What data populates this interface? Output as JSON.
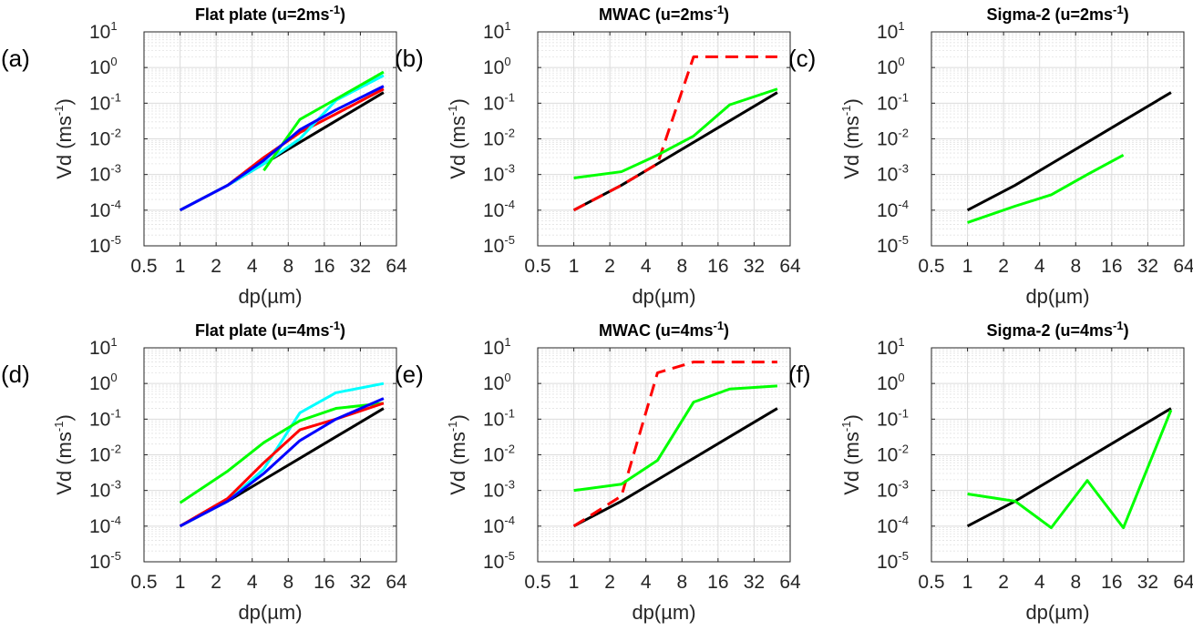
{
  "chart_data": [
    {
      "type": "line",
      "panel_label": "(a)",
      "title": "Flat plate (u=2ms",
      "title_sup": "-1",
      "title_tail": ")",
      "xlabel": "dp(µm)",
      "ylabel": "Vd (ms",
      "ylabel_sup": "-1",
      "ylabel_tail": ")",
      "xscale": "log2",
      "yscale": "log10",
      "xlim": [
        0.5,
        64
      ],
      "ylim": [
        -5,
        1
      ],
      "xticks": [
        0.5,
        1,
        2,
        4,
        8,
        16,
        32,
        64
      ],
      "xticklabels": [
        "0.5",
        "1",
        "2",
        "4",
        "8",
        "16",
        "32",
        "64"
      ],
      "yticks": [
        -5,
        -4,
        -3,
        -2,
        -1,
        0,
        1
      ],
      "ytick_mantissa": "10",
      "yticklabels_exp": [
        "-5",
        "-4",
        "-3",
        "-2",
        "-1",
        "0",
        "1"
      ],
      "grid": true,
      "series": [
        {
          "name": "black",
          "color": "#000000",
          "dash": "",
          "x": [
            1,
            2.5,
            5,
            10,
            20,
            50
          ],
          "y": [
            0.0001,
            0.0005,
            0.002,
            0.008,
            0.032,
            0.2
          ]
        },
        {
          "name": "red",
          "color": "#ff0000",
          "dash": "",
          "x": [
            1,
            2.5,
            5,
            10,
            20,
            50
          ],
          "y": [
            0.0001,
            0.0005,
            0.003,
            0.015,
            0.05,
            0.25
          ]
        },
        {
          "name": "cyan",
          "color": "#00ffff",
          "dash": "",
          "x": [
            1,
            2.5,
            5,
            10,
            20,
            50
          ],
          "y": [
            0.0001,
            0.0005,
            0.002,
            0.01,
            0.12,
            0.6
          ]
        },
        {
          "name": "green",
          "color": "#00ff00",
          "dash": "",
          "x": [
            5,
            10,
            20,
            50
          ],
          "y": [
            0.0013,
            0.035,
            0.13,
            0.75
          ]
        },
        {
          "name": "blue",
          "color": "#0000ff",
          "dash": "",
          "x": [
            1,
            2.5,
            5,
            10,
            20,
            50
          ],
          "y": [
            0.0001,
            0.0005,
            0.0025,
            0.018,
            0.065,
            0.3
          ]
        }
      ]
    },
    {
      "type": "line",
      "panel_label": "(b)",
      "title": "MWAC (u=2ms",
      "title_sup": "-1",
      "title_tail": ")",
      "xlabel": "dp(µm)",
      "ylabel": "Vd (ms",
      "ylabel_sup": "-1",
      "ylabel_tail": ")",
      "xscale": "log2",
      "yscale": "log10",
      "xlim": [
        0.5,
        64
      ],
      "ylim": [
        -5,
        1
      ],
      "xticks": [
        0.5,
        1,
        2,
        4,
        8,
        16,
        32,
        64
      ],
      "xticklabels": [
        "0.5",
        "1",
        "2",
        "4",
        "8",
        "16",
        "32",
        "64"
      ],
      "yticks": [
        -5,
        -4,
        -3,
        -2,
        -1,
        0,
        1
      ],
      "ytick_mantissa": "10",
      "yticklabels_exp": [
        "-5",
        "-4",
        "-3",
        "-2",
        "-1",
        "0",
        "1"
      ],
      "grid": true,
      "series": [
        {
          "name": "black",
          "color": "#000000",
          "dash": "",
          "x": [
            1,
            2.5,
            5,
            10,
            20,
            50
          ],
          "y": [
            0.0001,
            0.0005,
            0.002,
            0.008,
            0.032,
            0.2
          ]
        },
        {
          "name": "red dashed",
          "color": "#ff0000",
          "dash": "14,8",
          "x": [
            1,
            2.5,
            5,
            10,
            20,
            50
          ],
          "y": [
            0.0001,
            0.0005,
            0.002,
            2,
            2,
            2
          ]
        },
        {
          "name": "green",
          "color": "#00ff00",
          "dash": "",
          "x": [
            1,
            2.5,
            5,
            10,
            20,
            50
          ],
          "y": [
            0.0008,
            0.0012,
            0.0035,
            0.012,
            0.09,
            0.25
          ]
        }
      ]
    },
    {
      "type": "line",
      "panel_label": "(c)",
      "title": "Sigma-2 (u=2ms",
      "title_sup": "-1",
      "title_tail": ")",
      "xlabel": "dp(µm)",
      "ylabel": "Vd (ms",
      "ylabel_sup": "-1",
      "ylabel_tail": ")",
      "xscale": "log2",
      "yscale": "log10",
      "xlim": [
        0.5,
        64
      ],
      "ylim": [
        -5,
        1
      ],
      "xticks": [
        0.5,
        1,
        2,
        4,
        8,
        16,
        32,
        64
      ],
      "xticklabels": [
        "0.5",
        "1",
        "2",
        "4",
        "8",
        "16",
        "32",
        "64"
      ],
      "yticks": [
        -5,
        -4,
        -3,
        -2,
        -1,
        0,
        1
      ],
      "ytick_mantissa": "10",
      "yticklabels_exp": [
        "-5",
        "-4",
        "-3",
        "-2",
        "-1",
        "0",
        "1"
      ],
      "grid": true,
      "series": [
        {
          "name": "black",
          "color": "#000000",
          "dash": "",
          "x": [
            1,
            2.5,
            5,
            10,
            20,
            50
          ],
          "y": [
            0.0001,
            0.0005,
            0.002,
            0.008,
            0.032,
            0.2
          ]
        },
        {
          "name": "green",
          "color": "#00ff00",
          "dash": "",
          "x": [
            1,
            2.5,
            5,
            10,
            20
          ],
          "y": [
            4.5e-05,
            0.00013,
            0.00027,
            0.001,
            0.0035
          ]
        }
      ]
    },
    {
      "type": "line",
      "panel_label": "(d)",
      "title": "Flat plate (u=4ms",
      "title_sup": "-1",
      "title_tail": ")",
      "xlabel": "dp(µm)",
      "ylabel": "Vd (ms",
      "ylabel_sup": "-1",
      "ylabel_tail": ")",
      "xscale": "log2",
      "yscale": "log10",
      "xlim": [
        0.5,
        64
      ],
      "ylim": [
        -5,
        1
      ],
      "xticks": [
        0.5,
        1,
        2,
        4,
        8,
        16,
        32,
        64
      ],
      "xticklabels": [
        "0.5",
        "1",
        "2",
        "4",
        "8",
        "16",
        "32",
        "64"
      ],
      "yticks": [
        -5,
        -4,
        -3,
        -2,
        -1,
        0,
        1
      ],
      "ytick_mantissa": "10",
      "yticklabels_exp": [
        "-5",
        "-4",
        "-3",
        "-2",
        "-1",
        "0",
        "1"
      ],
      "grid": true,
      "series": [
        {
          "name": "black",
          "color": "#000000",
          "dash": "",
          "x": [
            1,
            2.5,
            5,
            10,
            20,
            50
          ],
          "y": [
            0.0001,
            0.0005,
            0.002,
            0.008,
            0.032,
            0.2
          ]
        },
        {
          "name": "cyan",
          "color": "#00ffff",
          "dash": "",
          "x": [
            1,
            2.5,
            5,
            10,
            20,
            50
          ],
          "y": [
            0.0001,
            0.0005,
            0.004,
            0.15,
            0.55,
            1.0
          ]
        },
        {
          "name": "green",
          "color": "#00ff00",
          "dash": "",
          "x": [
            1,
            2.5,
            5,
            10,
            20,
            50
          ],
          "y": [
            0.00045,
            0.0035,
            0.022,
            0.09,
            0.2,
            0.28
          ]
        },
        {
          "name": "red",
          "color": "#ff0000",
          "dash": "",
          "x": [
            1,
            2.5,
            5,
            10,
            20,
            50
          ],
          "y": [
            0.0001,
            0.0006,
            0.006,
            0.05,
            0.1,
            0.28
          ]
        },
        {
          "name": "blue",
          "color": "#0000ff",
          "dash": "",
          "x": [
            1,
            2.5,
            5,
            10,
            20,
            50
          ],
          "y": [
            0.0001,
            0.0005,
            0.003,
            0.025,
            0.1,
            0.38
          ]
        }
      ]
    },
    {
      "type": "line",
      "panel_label": "(e)",
      "title": "MWAC (u=4ms",
      "title_sup": "-1",
      "title_tail": ")",
      "xlabel": "dp(µm)",
      "ylabel": "Vd (ms",
      "ylabel_sup": "-1",
      "ylabel_tail": ")",
      "xscale": "log2",
      "yscale": "log10",
      "xlim": [
        0.5,
        64
      ],
      "ylim": [
        -5,
        1
      ],
      "xticks": [
        0.5,
        1,
        2,
        4,
        8,
        16,
        32,
        64
      ],
      "xticklabels": [
        "0.5",
        "1",
        "2",
        "4",
        "8",
        "16",
        "32",
        "64"
      ],
      "yticks": [
        -5,
        -4,
        -3,
        -2,
        -1,
        0,
        1
      ],
      "ytick_mantissa": "10",
      "yticklabels_exp": [
        "-5",
        "-4",
        "-3",
        "-2",
        "-1",
        "0",
        "1"
      ],
      "grid": true,
      "series": [
        {
          "name": "black",
          "color": "#000000",
          "dash": "",
          "x": [
            1,
            2.5,
            5,
            10,
            20,
            50
          ],
          "y": [
            0.0001,
            0.0005,
            0.002,
            0.008,
            0.032,
            0.2
          ]
        },
        {
          "name": "red dashed",
          "color": "#ff0000",
          "dash": "14,8",
          "x": [
            1,
            2.5,
            5,
            10,
            20,
            50
          ],
          "y": [
            0.0001,
            0.0007,
            2,
            4,
            4,
            4
          ]
        },
        {
          "name": "green",
          "color": "#00ff00",
          "dash": "",
          "x": [
            1,
            2.5,
            5,
            10,
            20,
            50
          ],
          "y": [
            0.001,
            0.0015,
            0.007,
            0.3,
            0.7,
            0.85
          ]
        }
      ]
    },
    {
      "type": "line",
      "panel_label": "(f)",
      "title": "Sigma-2 (u=4ms",
      "title_sup": "-1",
      "title_tail": ")",
      "xlabel": "dp(µm)",
      "ylabel": "Vd (ms",
      "ylabel_sup": "-1",
      "ylabel_tail": ")",
      "xscale": "log2",
      "yscale": "log10",
      "xlim": [
        0.5,
        64
      ],
      "ylim": [
        -5,
        1
      ],
      "xticks": [
        0.5,
        1,
        2,
        4,
        8,
        16,
        32,
        64
      ],
      "xticklabels": [
        "0.5",
        "1",
        "2",
        "4",
        "8",
        "16",
        "32",
        "64"
      ],
      "yticks": [
        -5,
        -4,
        -3,
        -2,
        -1,
        0,
        1
      ],
      "ytick_mantissa": "10",
      "yticklabels_exp": [
        "-5",
        "-4",
        "-3",
        "-2",
        "-1",
        "0",
        "1"
      ],
      "grid": true,
      "series": [
        {
          "name": "black",
          "color": "#000000",
          "dash": "",
          "x": [
            1,
            2.5,
            5,
            10,
            20,
            50
          ],
          "y": [
            0.0001,
            0.0005,
            0.002,
            0.008,
            0.032,
            0.2
          ]
        },
        {
          "name": "green",
          "color": "#00ff00",
          "dash": "",
          "x": [
            1,
            2.5,
            5,
            10,
            20,
            50
          ],
          "y": [
            0.0008,
            0.0005,
            9e-05,
            0.0019,
            9e-05,
            0.18
          ]
        }
      ]
    }
  ]
}
